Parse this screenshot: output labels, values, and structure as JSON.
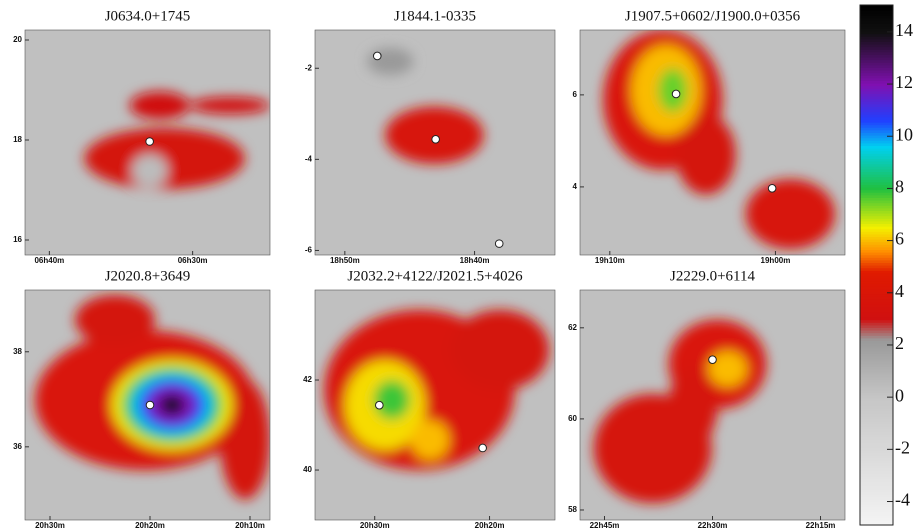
{
  "chart_data": [
    {
      "type": "heatmap",
      "title": "J0634.0+1745",
      "xlim": [
        401.7,
        384.6
      ],
      "xticks": [
        {
          "value": 400,
          "label": "06h40m"
        },
        {
          "value": 390,
          "label": "06h30m"
        }
      ],
      "ylim": [
        15.7,
        20.2
      ],
      "yticks": [
        16,
        18,
        20
      ],
      "sources": {
        "x": [
          393.0
        ],
        "y": [
          17.97
        ]
      },
      "blobs": [
        {
          "x": 391.96,
          "y": 17.63,
          "rx": 5.6,
          "ry": 0.61,
          "level": 3.5
        },
        {
          "x": 387.4,
          "y": 18.69,
          "rx": 2.8,
          "ry": 0.17,
          "level": 3.2
        },
        {
          "x": 392.3,
          "y": 18.69,
          "rx": 2.1,
          "ry": 0.28,
          "level": 3
        },
        {
          "x": 393.0,
          "y": 17.39,
          "rx": 1.26,
          "ry": 0.33,
          "level": 0.5
        }
      ]
    },
    {
      "type": "heatmap",
      "title": "J1844.1-0335",
      "xlim": [
        1132.3,
        1113.8
      ],
      "xticks": [
        {
          "value": 1130,
          "label": "18h50m"
        },
        {
          "value": 1120,
          "label": "18h40m"
        }
      ],
      "ylim": [
        -6.1,
        -1.16
      ],
      "yticks": [
        -6,
        -4,
        -2
      ],
      "sources": {
        "x": [
          1127.5,
          1123.0,
          1118.1
        ],
        "y": [
          -1.73,
          -3.56,
          -5.85
        ]
      },
      "blobs": [
        {
          "x": 1126.5,
          "y": -1.85,
          "rx": 1.8,
          "ry": 0.3,
          "level": 2.2
        },
        {
          "x": 1123.1,
          "y": -3.47,
          "rx": 3.8,
          "ry": 0.63,
          "level": 3.8
        }
      ]
    },
    {
      "type": "heatmap",
      "title": "J1907.5+0602/J1900.0+0356",
      "xlim": [
        1151.8,
        1135.8
      ],
      "xticks": [
        {
          "value": 1150,
          "label": "19h10m"
        },
        {
          "value": 1140,
          "label": "19h00m"
        }
      ],
      "ylim": [
        2.52,
        7.41
      ],
      "yticks": [
        4,
        6
      ],
      "sources": {
        "x": [
          1146.0,
          1140.2
        ],
        "y": [
          6.02,
          3.97
        ]
      },
      "blobs": [
        {
          "x": 1146.8,
          "y": 5.89,
          "rx": 3.6,
          "ry": 1.52,
          "level": 4
        },
        {
          "x": 1144.2,
          "y": 4.7,
          "rx": 1.8,
          "ry": 0.87,
          "level": 3.5
        },
        {
          "x": 1139.1,
          "y": 3.41,
          "rx": 2.7,
          "ry": 0.76,
          "level": 3.8
        },
        {
          "x": 1146.6,
          "y": 6.1,
          "rx": 2.1,
          "ry": 0.98,
          "level": 6
        },
        {
          "x": 1146.2,
          "y": 6.1,
          "rx": 0.9,
          "ry": 0.48,
          "level": 7.5
        }
      ]
    },
    {
      "type": "heatmap",
      "title": "J2020.8+3649",
      "xlim": [
        1232.5,
        1208
      ],
      "xticks": [
        {
          "value": 1230,
          "label": "20h30m"
        },
        {
          "value": 1220,
          "label": "20h20m"
        },
        {
          "value": 1210,
          "label": "20h10m"
        }
      ],
      "ylim": [
        34.46,
        39.3
      ],
      "yticks": [
        36,
        38
      ],
      "sources": {
        "x": [
          1220
        ],
        "y": [
          36.88
        ]
      },
      "blobs": [
        {
          "x": 1220.5,
          "y": 36.98,
          "rx": 11,
          "ry": 1.47,
          "level": 4
        },
        {
          "x": 1223.5,
          "y": 38.67,
          "rx": 4,
          "ry": 0.53,
          "level": 3.5
        },
        {
          "x": 1210.5,
          "y": 36.15,
          "rx": 2.5,
          "ry": 1.26,
          "level": 3.5
        },
        {
          "x": 1217.8,
          "y": 36.88,
          "rx": 6,
          "ry": 0.95,
          "level": 6.5
        },
        {
          "x": 1217.8,
          "y": 36.88,
          "rx": 5,
          "ry": 0.8,
          "level": 8
        },
        {
          "x": 1217.8,
          "y": 36.88,
          "rx": 4.2,
          "ry": 0.67,
          "level": 9.5
        },
        {
          "x": 1217.8,
          "y": 36.88,
          "rx": 3.4,
          "ry": 0.55,
          "level": 10.5
        },
        {
          "x": 1217.8,
          "y": 36.88,
          "rx": 2.4,
          "ry": 0.4,
          "level": 12
        },
        {
          "x": 1217.8,
          "y": 36.88,
          "rx": 1.2,
          "ry": 0.21,
          "level": 14
        }
      ]
    },
    {
      "type": "heatmap",
      "title": "J2032.2+4122/J2021.5+4026",
      "xlim": [
        1235.2,
        1214.3
      ],
      "xticks": [
        {
          "value": 1230,
          "label": "20h30m"
        },
        {
          "value": 1220,
          "label": "20h20m"
        }
      ],
      "ylim": [
        38.89,
        44
      ],
      "yticks": [
        40,
        42
      ],
      "sources": {
        "x": [
          1229.6,
          1220.6
        ],
        "y": [
          41.44,
          40.49
        ]
      },
      "blobs": [
        {
          "x": 1226.1,
          "y": 41.78,
          "rx": 8.3,
          "ry": 1.78,
          "level": 4
        },
        {
          "x": 1219.1,
          "y": 42.67,
          "rx": 4.3,
          "ry": 0.89,
          "level": 3.5
        },
        {
          "x": 1229.1,
          "y": 41.44,
          "rx": 3.5,
          "ry": 1.0,
          "level": 6.3
        },
        {
          "x": 1225.2,
          "y": 40.67,
          "rx": 1.7,
          "ry": 0.44,
          "level": 6
        },
        {
          "x": 1228.5,
          "y": 41.56,
          "rx": 1.6,
          "ry": 0.44,
          "level": 7.8
        }
      ]
    },
    {
      "type": "heatmap",
      "title": "J2229.0+6114",
      "xlim": [
        1368.4,
        1331.6
      ],
      "xticks": [
        {
          "value": 1365,
          "label": "22h45m"
        },
        {
          "value": 1350,
          "label": "22h30m"
        },
        {
          "value": 1335,
          "label": "22h15m"
        }
      ],
      "ylim": [
        57.78,
        62.83
      ],
      "yticks": [
        58,
        60,
        62
      ],
      "sources": {
        "x": [
          1350
        ],
        "y": [
          61.3
        ]
      },
      "blobs": [
        {
          "x": 1349.3,
          "y": 61.2,
          "rx": 6.8,
          "ry": 0.98,
          "level": 4
        },
        {
          "x": 1358.3,
          "y": 59.35,
          "rx": 8.2,
          "ry": 1.2,
          "level": 3.6
        },
        {
          "x": 1352.7,
          "y": 60.28,
          "rx": 3.4,
          "ry": 0.87,
          "level": 3.6
        },
        {
          "x": 1347.9,
          "y": 61.1,
          "rx": 2.7,
          "ry": 0.39,
          "level": 6
        }
      ]
    },
    {
      "type": "colorbar",
      "ylim": [
        -4.9,
        15.03
      ],
      "yticks": [
        -4,
        -2,
        0,
        2,
        4,
        6,
        8,
        10,
        12,
        14
      ],
      "stops": [
        {
          "value": -4.9,
          "color": "#f4f4f4"
        },
        {
          "value": 0,
          "color": "#c6c6c6"
        },
        {
          "value": 2.2,
          "color": "#9a9a9a"
        },
        {
          "value": 3,
          "color": "#d01010"
        },
        {
          "value": 4.8,
          "color": "#e01a00"
        },
        {
          "value": 5.6,
          "color": "#ff9000"
        },
        {
          "value": 6.5,
          "color": "#f4f000"
        },
        {
          "value": 8,
          "color": "#20c040"
        },
        {
          "value": 9.6,
          "color": "#00d0f0"
        },
        {
          "value": 10.6,
          "color": "#2040ff"
        },
        {
          "value": 12,
          "color": "#8010b0"
        },
        {
          "value": 14,
          "color": "#101010"
        },
        {
          "value": 15.03,
          "color": "#000000"
        }
      ]
    }
  ]
}
